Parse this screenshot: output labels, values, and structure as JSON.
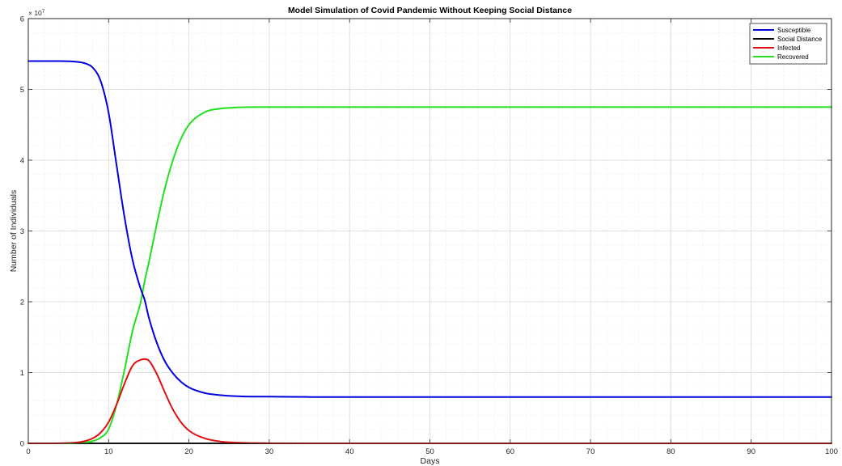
{
  "chart_data": {
    "type": "line",
    "title": "Model Simulation of Covid Pandemic Without Keeping Social Distance",
    "xlabel": "Days",
    "ylabel": "Number of Individuals",
    "xlim": [
      0,
      100
    ],
    "ylim": [
      0,
      6
    ],
    "y_scale_factor": {
      "base": "× 10",
      "exponent": "7"
    },
    "x_ticks": [
      0,
      10,
      20,
      30,
      40,
      50,
      60,
      70,
      80,
      90,
      100
    ],
    "y_ticks": [
      0,
      1,
      2,
      3,
      4,
      5,
      6
    ],
    "x_minor_step": 2,
    "y_minor_step": 0.2,
    "grid": true,
    "minor_grid": true,
    "legend_location": "top-right",
    "x": [
      0,
      2,
      4,
      6,
      7,
      8,
      9,
      10,
      11,
      12,
      13,
      14,
      14.5,
      15,
      16,
      17,
      18,
      19,
      20,
      22,
      24,
      26,
      28,
      30,
      35,
      40,
      50,
      60,
      70,
      80,
      90,
      100
    ],
    "series": [
      {
        "name": "Susceptible",
        "color": "#0000e0",
        "values": [
          5.4,
          5.4,
          5.4,
          5.39,
          5.37,
          5.31,
          5.12,
          4.67,
          3.92,
          3.18,
          2.58,
          2.18,
          2.02,
          1.78,
          1.42,
          1.16,
          0.99,
          0.87,
          0.79,
          0.71,
          0.68,
          0.665,
          0.66,
          0.66,
          0.655,
          0.655,
          0.655,
          0.655,
          0.655,
          0.655,
          0.655,
          0.655
        ]
      },
      {
        "name": "Social Distance",
        "color": "#000000",
        "values": [
          0,
          0,
          0,
          0,
          0,
          0,
          0,
          0,
          0,
          0,
          0,
          0,
          0,
          0,
          0,
          0,
          0,
          0,
          0,
          0,
          0,
          0,
          0,
          0,
          0,
          0,
          0,
          0,
          0,
          0,
          0,
          0
        ]
      },
      {
        "name": "Infected",
        "color": "#e01010",
        "values": [
          0,
          0,
          0.002,
          0.012,
          0.03,
          0.07,
          0.15,
          0.3,
          0.55,
          0.85,
          1.1,
          1.18,
          1.19,
          1.17,
          0.98,
          0.72,
          0.48,
          0.3,
          0.18,
          0.07,
          0.025,
          0.01,
          0.004,
          0.002,
          0,
          0,
          0,
          0,
          0,
          0,
          0,
          0
        ]
      },
      {
        "name": "Recovered",
        "color": "#20e020",
        "values": [
          0,
          0,
          0,
          0.003,
          0.01,
          0.03,
          0.08,
          0.2,
          0.55,
          1.05,
          1.6,
          2.0,
          2.3,
          2.55,
          3.1,
          3.6,
          4.0,
          4.3,
          4.5,
          4.68,
          4.73,
          4.745,
          4.75,
          4.75,
          4.75,
          4.75,
          4.75,
          4.75,
          4.75,
          4.75,
          4.75,
          4.75
        ]
      }
    ]
  }
}
